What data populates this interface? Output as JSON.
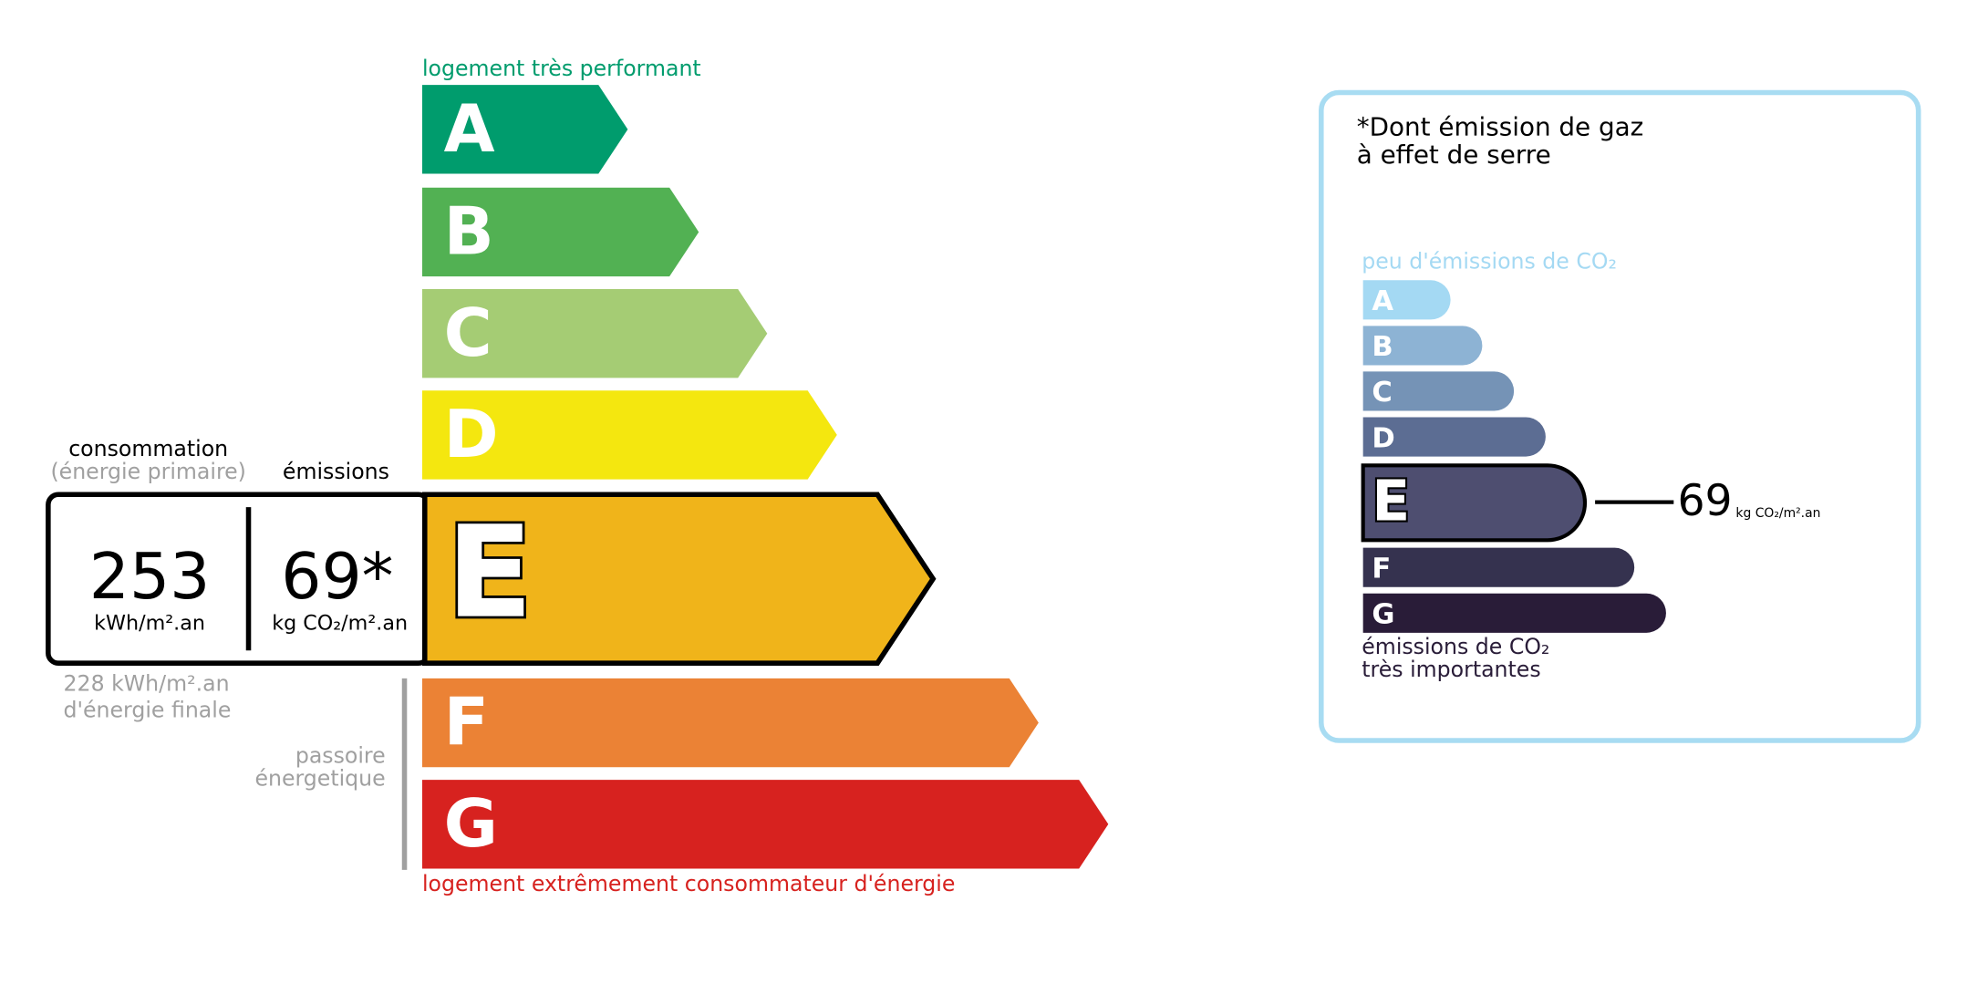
{
  "energy_label": {
    "top_caption": "logement très performant",
    "bottom_caption": "logement extrêmement consommateur d'énergie",
    "classes": [
      "A",
      "B",
      "C",
      "D",
      "E",
      "F",
      "G"
    ],
    "consumption": {
      "heading": "consommation",
      "subheading": "(énergie primaire)",
      "value": 253,
      "unit": "kWh/m².an"
    },
    "emissions": {
      "heading": "émissions",
      "value": "69*",
      "unit": "kg CO₂/m².an"
    },
    "final_energy": [
      "228 kWh/m².an",
      "d'énergie finale"
    ],
    "passoire": [
      "passoire",
      "énergetique"
    ]
  },
  "ghg_label": {
    "title": [
      "*Dont émission de gaz",
      "à effet de serre"
    ],
    "top_caption": "peu d'émissions de CO₂",
    "bottom_caption": [
      "émissions de CO₂",
      "très importantes"
    ],
    "classes": [
      "A",
      "B",
      "C",
      "D",
      "E",
      "F",
      "G"
    ],
    "value": 69,
    "unit": "kg CO₂/m².an"
  }
}
